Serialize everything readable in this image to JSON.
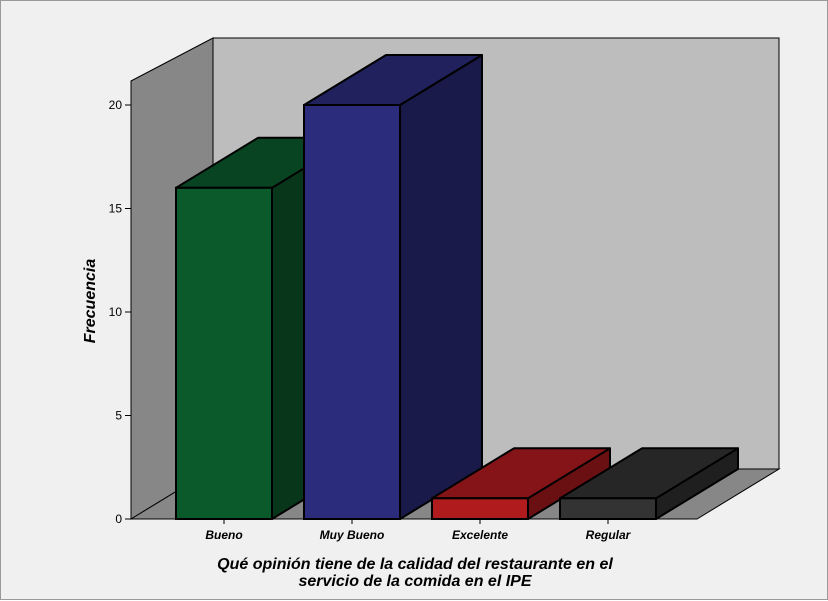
{
  "chart_data": {
    "type": "bar",
    "style": "3d",
    "categories": [
      "Bueno",
      "Muy Bueno",
      "Excelente",
      "Regular"
    ],
    "values": [
      16,
      20,
      1,
      1
    ],
    "colors": [
      "#0b5a2c",
      "#2b2c7c",
      "#b01b1e",
      "#333333"
    ],
    "ylabel": "Frecuencia",
    "xlabel_lines": [
      "Qué opinión tiene de la calidad del restaurante en el",
      "servicio de la comida en el IPE"
    ],
    "y_ticks": [
      "0",
      "5",
      "10",
      "15",
      "20"
    ],
    "ylim": [
      0,
      20
    ],
    "grid": false,
    "legend": "none"
  }
}
